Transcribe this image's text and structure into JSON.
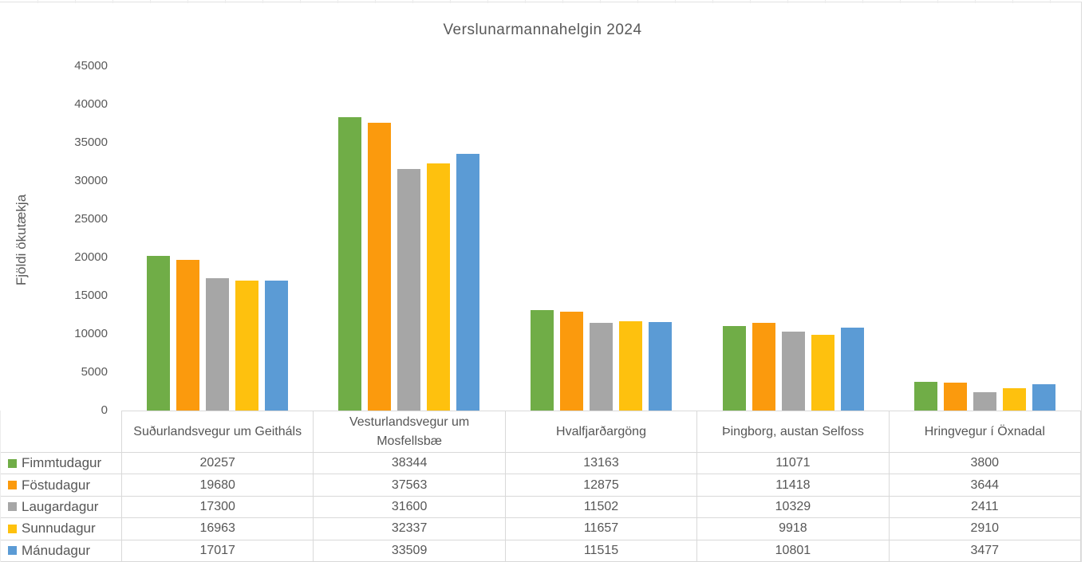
{
  "title": "Verslunarmannahelgin 2024",
  "colors": {
    "text": "#595959",
    "table_border": "#d9d9d9",
    "background": "#ffffff"
  },
  "chart_data": {
    "type": "bar",
    "title": "Verslunarmannahelgin 2024",
    "xlabel": "",
    "ylabel": "Fjöldi ökutækja",
    "ylim": [
      0,
      45000
    ],
    "ytick_step": 5000,
    "ytick_labels": [
      "45000",
      "40000",
      "35000",
      "30000",
      "25000",
      "20000",
      "15000",
      "10000",
      "5000",
      "0"
    ],
    "grid": false,
    "legend_position": "table-left",
    "categories": [
      "Suðurlandsvegur um Geitháls",
      "Vesturlandsvegur  um Mosfellsbæ",
      "Hvalfjarðargöng",
      "Þingborg, austan Selfoss",
      "Hringvegur í Öxnadal"
    ],
    "series": [
      {
        "name": "Fimmtudagur",
        "color": "#70AD47",
        "values": [
          20257,
          38344,
          13163,
          11071,
          3800
        ]
      },
      {
        "name": "Föstudagur",
        "color": "#FB9A0D",
        "values": [
          19680,
          37563,
          12875,
          11418,
          3644
        ]
      },
      {
        "name": "Laugardagur",
        "color": "#A6A6A6",
        "values": [
          17300,
          31600,
          11502,
          10329,
          2411
        ]
      },
      {
        "name": "Sunnudagur",
        "color": "#FEC10E",
        "values": [
          16963,
          32337,
          11657,
          9918,
          2910
        ]
      },
      {
        "name": "Mánudagur",
        "color": "#5B9BD5",
        "values": [
          17017,
          33509,
          11515,
          10801,
          3477
        ]
      }
    ]
  }
}
